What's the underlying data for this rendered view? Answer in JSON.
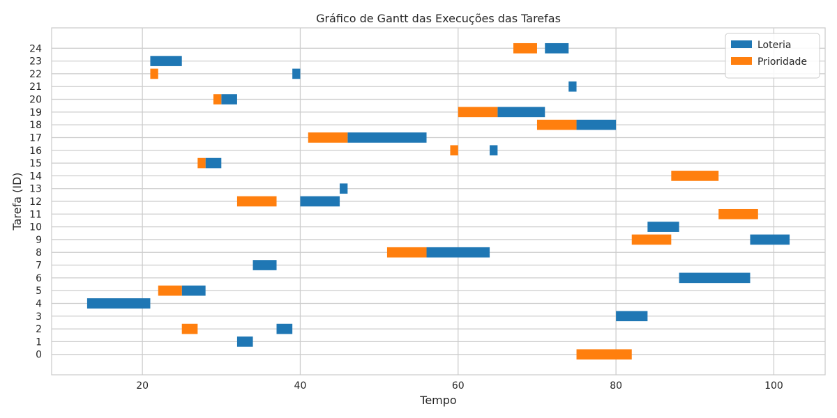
{
  "chart_data": {
    "type": "bar",
    "orientation": "horizontal",
    "title": "Gráfico de Gantt das Execuções das Tarefas",
    "xlabel": "Tempo",
    "ylabel": "Tarefa (ID)",
    "xlim": [
      8.5,
      106.5
    ],
    "ylim": [
      -1.6,
      25.6
    ],
    "x_ticks": [
      20,
      40,
      60,
      80,
      100
    ],
    "y_ticks": [
      0,
      1,
      2,
      3,
      4,
      5,
      6,
      7,
      8,
      9,
      10,
      11,
      12,
      13,
      14,
      15,
      16,
      17,
      18,
      19,
      20,
      21,
      22,
      23,
      24
    ],
    "grid": true,
    "legend_position": "top-right",
    "series": [
      {
        "name": "Loteria",
        "color": "#1f77b4",
        "segments": [
          {
            "task": 1,
            "start": 32,
            "end": 34
          },
          {
            "task": 2,
            "start": 37,
            "end": 39
          },
          {
            "task": 3,
            "start": 80,
            "end": 84
          },
          {
            "task": 4,
            "start": 13,
            "end": 21
          },
          {
            "task": 5,
            "start": 25,
            "end": 28
          },
          {
            "task": 6,
            "start": 88,
            "end": 97
          },
          {
            "task": 7,
            "start": 34,
            "end": 37
          },
          {
            "task": 8,
            "start": 56,
            "end": 64
          },
          {
            "task": 9,
            "start": 97,
            "end": 102
          },
          {
            "task": 10,
            "start": 84,
            "end": 88
          },
          {
            "task": 12,
            "start": 40,
            "end": 45
          },
          {
            "task": 13,
            "start": 45,
            "end": 46
          },
          {
            "task": 15,
            "start": 28,
            "end": 30
          },
          {
            "task": 16,
            "start": 64,
            "end": 65
          },
          {
            "task": 17,
            "start": 46,
            "end": 56
          },
          {
            "task": 18,
            "start": 75,
            "end": 80
          },
          {
            "task": 19,
            "start": 65,
            "end": 71
          },
          {
            "task": 20,
            "start": 30,
            "end": 32
          },
          {
            "task": 21,
            "start": 74,
            "end": 75
          },
          {
            "task": 22,
            "start": 39,
            "end": 40
          },
          {
            "task": 23,
            "start": 21,
            "end": 25
          },
          {
            "task": 24,
            "start": 71,
            "end": 74
          }
        ]
      },
      {
        "name": "Prioridade",
        "color": "#ff7f0e",
        "segments": [
          {
            "task": 0,
            "start": 75,
            "end": 82
          },
          {
            "task": 2,
            "start": 25,
            "end": 27
          },
          {
            "task": 5,
            "start": 22,
            "end": 25
          },
          {
            "task": 8,
            "start": 51,
            "end": 56
          },
          {
            "task": 9,
            "start": 82,
            "end": 87
          },
          {
            "task": 11,
            "start": 93,
            "end": 98
          },
          {
            "task": 12,
            "start": 32,
            "end": 37
          },
          {
            "task": 14,
            "start": 87,
            "end": 93
          },
          {
            "task": 15,
            "start": 27,
            "end": 28
          },
          {
            "task": 16,
            "start": 59,
            "end": 60
          },
          {
            "task": 17,
            "start": 41,
            "end": 46
          },
          {
            "task": 18,
            "start": 70,
            "end": 75
          },
          {
            "task": 19,
            "start": 60,
            "end": 65
          },
          {
            "task": 20,
            "start": 29,
            "end": 30
          },
          {
            "task": 22,
            "start": 21,
            "end": 22
          },
          {
            "task": 24,
            "start": 67,
            "end": 70
          }
        ]
      }
    ]
  }
}
